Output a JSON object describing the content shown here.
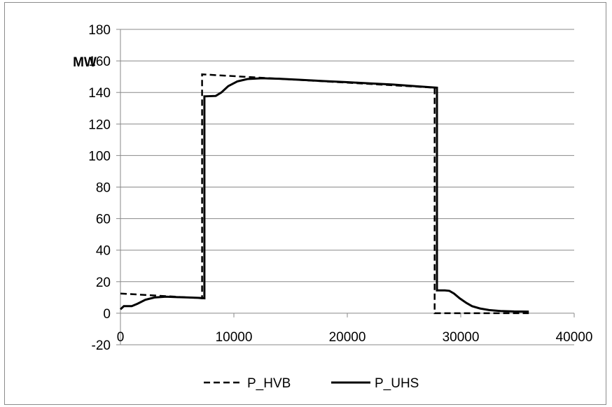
{
  "chart_data": {
    "type": "line",
    "title": "",
    "xlabel": "",
    "ylabel": "MW",
    "xlim": [
      0,
      40000
    ],
    "ylim": [
      -20,
      180
    ],
    "x_ticks": [
      0,
      10000,
      20000,
      30000,
      40000
    ],
    "y_ticks": [
      -20,
      0,
      20,
      40,
      60,
      80,
      100,
      120,
      140,
      160,
      180
    ],
    "grid": "horizontal",
    "legend_position": "bottom",
    "series": [
      {
        "name": "P_HVB",
        "style": "dashed",
        "color": "#000000",
        "points": [
          [
            0,
            12.5
          ],
          [
            7200,
            9.5
          ],
          [
            7200,
            151.5
          ],
          [
            27700,
            143
          ],
          [
            27700,
            0
          ],
          [
            36000,
            0
          ]
        ]
      },
      {
        "name": "P_UHS",
        "style": "solid",
        "color": "#000000",
        "points": [
          [
            0,
            2.5
          ],
          [
            300,
            4.5
          ],
          [
            1000,
            4.5
          ],
          [
            1500,
            6
          ],
          [
            2200,
            8.5
          ],
          [
            3000,
            10
          ],
          [
            4000,
            10.5
          ],
          [
            5000,
            10.2
          ],
          [
            6000,
            10
          ],
          [
            7000,
            9.7
          ],
          [
            7400,
            9.5
          ],
          [
            7400,
            137.5
          ],
          [
            8400,
            137.8
          ],
          [
            8900,
            140
          ],
          [
            9500,
            144
          ],
          [
            10300,
            147
          ],
          [
            11200,
            148.5
          ],
          [
            12500,
            149
          ],
          [
            14000,
            148.7
          ],
          [
            16000,
            148
          ],
          [
            18000,
            147.2
          ],
          [
            20000,
            146.5
          ],
          [
            22000,
            145.7
          ],
          [
            24000,
            145
          ],
          [
            26000,
            144
          ],
          [
            27900,
            143
          ],
          [
            27900,
            14.5
          ],
          [
            28600,
            14.5
          ],
          [
            29000,
            14.2
          ],
          [
            29400,
            12.5
          ],
          [
            29900,
            9.5
          ],
          [
            30500,
            6.5
          ],
          [
            31000,
            4.5
          ],
          [
            31700,
            3
          ],
          [
            32500,
            2
          ],
          [
            33500,
            1.4
          ],
          [
            34700,
            1.1
          ],
          [
            36000,
            1
          ]
        ]
      }
    ]
  }
}
